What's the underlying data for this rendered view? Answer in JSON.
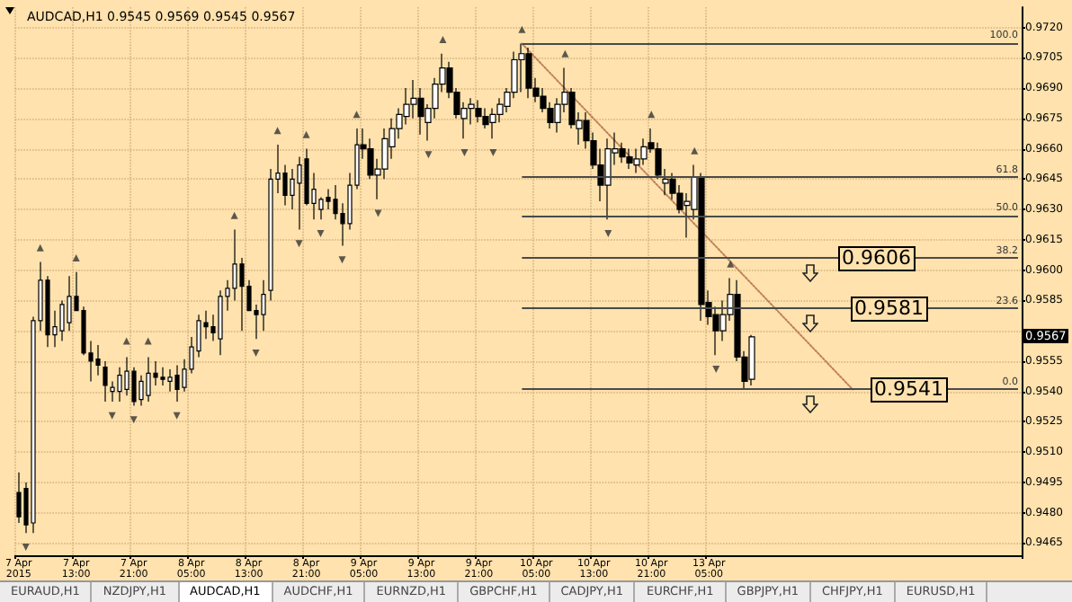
{
  "chart_data": {
    "type": "candlestick",
    "title": "AUDCAD,H1 0.9545 0.9569 0.9545 0.9567",
    "categories": [
      "7 Apr 2015",
      null,
      null,
      null,
      null,
      null,
      null,
      null,
      "7 Apr 13:00",
      null,
      null,
      null,
      null,
      null,
      null,
      null,
      "7 Apr 21:00",
      null,
      null,
      null,
      null,
      null,
      null,
      null,
      "8 Apr 05:00",
      null,
      null,
      null,
      null,
      null,
      null,
      null,
      "8 Apr 13:00",
      null,
      null,
      null,
      null,
      null,
      null,
      null,
      "8 Apr 21:00",
      null,
      null,
      null,
      null,
      null,
      null,
      null,
      "9 Apr 05:00",
      null,
      null,
      null,
      null,
      null,
      null,
      null,
      "9 Apr 13:00",
      null,
      null,
      null,
      null,
      null,
      null,
      null,
      "9 Apr 21:00",
      null,
      null,
      null,
      null,
      null,
      null,
      null,
      "10 Apr 05:00",
      null,
      null,
      null,
      null,
      null,
      null,
      null,
      "10 Apr 13:00",
      null,
      null,
      null,
      null,
      null,
      null,
      null,
      "10 Apr 21:00",
      null,
      null,
      null,
      null,
      null,
      null,
      null,
      "13 Apr 05:00",
      null,
      null,
      null,
      null,
      null,
      null,
      null,
      null,
      null,
      null,
      null,
      null,
      null,
      null,
      null,
      null,
      null,
      null,
      null,
      null,
      null,
      null,
      null,
      null,
      null,
      null,
      null,
      null,
      null,
      null,
      null,
      null,
      null,
      null,
      null,
      null,
      null,
      null,
      null,
      null,
      null,
      null,
      null
    ],
    "ohlc": [
      [
        0.949,
        0.95,
        0.9475,
        0.9478
      ],
      [
        0.9492,
        0.9495,
        0.947,
        0.9474
      ],
      [
        0.9475,
        0.9577,
        0.947,
        0.9575
      ],
      [
        0.9575,
        0.9604,
        0.957,
        0.9595
      ],
      [
        0.9595,
        0.9597,
        0.9562,
        0.9568
      ],
      [
        0.9568,
        0.958,
        0.9562,
        0.9572
      ],
      [
        0.957,
        0.9585,
        0.9565,
        0.9583
      ],
      [
        0.9574,
        0.9597,
        0.957,
        0.9587
      ],
      [
        0.9587,
        0.9599,
        0.958,
        0.958
      ],
      [
        0.958,
        0.9582,
        0.9558,
        0.9559
      ],
      [
        0.9559,
        0.9565,
        0.9545,
        0.9555
      ],
      [
        0.9556,
        0.9563,
        0.9548,
        0.9553
      ],
      [
        0.9552,
        0.9555,
        0.9535,
        0.9543
      ],
      [
        0.954,
        0.9545,
        0.9535,
        0.9542
      ],
      [
        0.954,
        0.9552,
        0.9535,
        0.9548
      ],
      [
        0.9541,
        0.9557,
        0.9538,
        0.955
      ],
      [
        0.955,
        0.9552,
        0.9533,
        0.9535
      ],
      [
        0.9536,
        0.9548,
        0.9533,
        0.9545
      ],
      [
        0.9538,
        0.9557,
        0.9535,
        0.9549
      ],
      [
        0.9549,
        0.9555,
        0.9543,
        0.9547
      ],
      [
        0.9547,
        0.9552,
        0.9543,
        0.9546
      ],
      [
        0.9545,
        0.9551,
        0.954,
        0.9547
      ],
      [
        0.9548,
        0.9553,
        0.9535,
        0.9541
      ],
      [
        0.9542,
        0.9556,
        0.954,
        0.9551
      ],
      [
        0.9551,
        0.9567,
        0.9549,
        0.9562
      ],
      [
        0.956,
        0.9578,
        0.9557,
        0.9575
      ],
      [
        0.9574,
        0.958,
        0.9566,
        0.9572
      ],
      [
        0.9572,
        0.9578,
        0.9565,
        0.9569
      ],
      [
        0.9566,
        0.959,
        0.9558,
        0.9587
      ],
      [
        0.9587,
        0.9595,
        0.958,
        0.9591
      ],
      [
        0.9591,
        0.962,
        0.9585,
        0.9603
      ],
      [
        0.9603,
        0.9606,
        0.957,
        0.9592
      ],
      [
        0.9592,
        0.9595,
        0.958,
        0.958
      ],
      [
        0.958,
        0.9583,
        0.9566,
        0.9578
      ],
      [
        0.9578,
        0.9595,
        0.957,
        0.9588
      ],
      [
        0.959,
        0.965,
        0.9585,
        0.9645
      ],
      [
        0.9645,
        0.9662,
        0.9638,
        0.9648
      ],
      [
        0.9648,
        0.9652,
        0.9632,
        0.9637
      ],
      [
        0.9637,
        0.965,
        0.963,
        0.9645
      ],
      [
        0.9643,
        0.9656,
        0.962,
        0.9652
      ],
      [
        0.9655,
        0.966,
        0.9632,
        0.9633
      ],
      [
        0.9633,
        0.9648,
        0.9625,
        0.964
      ],
      [
        0.963,
        0.9636,
        0.9625,
        0.9635
      ],
      [
        0.9636,
        0.964,
        0.963,
        0.9634
      ],
      [
        0.9635,
        0.9642,
        0.9625,
        0.9628
      ],
      [
        0.9628,
        0.9633,
        0.9612,
        0.9623
      ],
      [
        0.9623,
        0.9648,
        0.962,
        0.9642
      ],
      [
        0.9642,
        0.967,
        0.964,
        0.9662
      ],
      [
        0.9662,
        0.967,
        0.9655,
        0.966
      ],
      [
        0.966,
        0.9665,
        0.9645,
        0.9647
      ],
      [
        0.9647,
        0.9655,
        0.9635,
        0.965
      ],
      [
        0.965,
        0.967,
        0.9645,
        0.9665
      ],
      [
        0.9661,
        0.9675,
        0.9655,
        0.967
      ],
      [
        0.967,
        0.968,
        0.9665,
        0.9677
      ],
      [
        0.9676,
        0.969,
        0.9672,
        0.9682
      ],
      [
        0.9682,
        0.9694,
        0.9675,
        0.9685
      ],
      [
        0.9685,
        0.969,
        0.9667,
        0.9676
      ],
      [
        0.9673,
        0.9682,
        0.9664,
        0.968
      ],
      [
        0.968,
        0.9695,
        0.9675,
        0.9692
      ],
      [
        0.9692,
        0.9707,
        0.9688,
        0.97
      ],
      [
        0.97,
        0.9703,
        0.9685,
        0.9688
      ],
      [
        0.9688,
        0.969,
        0.9675,
        0.9677
      ],
      [
        0.9675,
        0.9683,
        0.9665,
        0.968
      ],
      [
        0.968,
        0.9685,
        0.9672,
        0.9682
      ],
      [
        0.968,
        0.9684,
        0.9673,
        0.9676
      ],
      [
        0.9676,
        0.968,
        0.967,
        0.9672
      ],
      [
        0.9673,
        0.968,
        0.9665,
        0.9677
      ],
      [
        0.9677,
        0.9685,
        0.9673,
        0.9682
      ],
      [
        0.9681,
        0.969,
        0.9678,
        0.9688
      ],
      [
        0.9688,
        0.9708,
        0.9685,
        0.9704
      ],
      [
        0.9704,
        0.9712,
        0.9688,
        0.9707
      ],
      [
        0.9707,
        0.971,
        0.9685,
        0.969
      ],
      [
        0.969,
        0.9695,
        0.9683,
        0.9686
      ],
      [
        0.9686,
        0.969,
        0.9678,
        0.968
      ],
      [
        0.968,
        0.9683,
        0.967,
        0.9673
      ],
      [
        0.9673,
        0.9685,
        0.9668,
        0.9682
      ],
      [
        0.9682,
        0.97,
        0.9678,
        0.9688
      ],
      [
        0.9688,
        0.969,
        0.967,
        0.9672
      ],
      [
        0.967,
        0.9678,
        0.9662,
        0.9674
      ],
      [
        0.9674,
        0.9678,
        0.966,
        0.9664
      ],
      [
        0.9664,
        0.9668,
        0.965,
        0.9652
      ],
      [
        0.9652,
        0.966,
        0.9634,
        0.9642
      ],
      [
        0.9642,
        0.9665,
        0.9625,
        0.966
      ],
      [
        0.9658,
        0.9668,
        0.9652,
        0.966
      ],
      [
        0.966,
        0.9663,
        0.9653,
        0.9656
      ],
      [
        0.9656,
        0.966,
        0.965,
        0.9653
      ],
      [
        0.9652,
        0.966,
        0.9648,
        0.9655
      ],
      [
        0.9655,
        0.9665,
        0.9652,
        0.9661
      ],
      [
        0.9663,
        0.967,
        0.9658,
        0.966
      ],
      [
        0.966,
        0.9663,
        0.9645,
        0.9647
      ],
      [
        0.9643,
        0.965,
        0.9637,
        0.9645
      ],
      [
        0.9645,
        0.9648,
        0.9635,
        0.9638
      ],
      [
        0.9638,
        0.9642,
        0.9628,
        0.963
      ],
      [
        0.9632,
        0.9638,
        0.9616,
        0.9634
      ],
      [
        0.963,
        0.9652,
        0.9625,
        0.9646
      ],
      [
        0.9646,
        0.9648,
        0.9575,
        0.9583
      ],
      [
        0.9584,
        0.959,
        0.9573,
        0.9577
      ],
      [
        0.9578,
        0.9582,
        0.9558,
        0.957
      ],
      [
        0.957,
        0.9585,
        0.9565,
        0.9578
      ],
      [
        0.9578,
        0.9596,
        0.9575,
        0.9588
      ],
      [
        0.9588,
        0.9595,
        0.9555,
        0.9557
      ],
      [
        0.9557,
        0.956,
        0.9541,
        0.9545
      ],
      [
        0.9546,
        0.9568,
        0.9543,
        0.9567
      ],
      null,
      null,
      null,
      null,
      null,
      null,
      null,
      null,
      null,
      null,
      null,
      null,
      null,
      null,
      null,
      null,
      null,
      null,
      null,
      null,
      null,
      null,
      null,
      null,
      null,
      null,
      null,
      null,
      null,
      null,
      null,
      null,
      null,
      null,
      null,
      null,
      null
    ],
    "series": [
      {
        "type": "scatter",
        "color": "#333333",
        "marker": "triangle",
        "values": [
          null,
          null,
          null,
          0.9611,
          null,
          null,
          null,
          null,
          0.9606,
          null,
          null,
          null,
          null,
          null,
          null,
          0.9565,
          null,
          null,
          0.9565,
          null,
          null,
          null,
          null,
          null,
          null,
          null,
          null,
          null,
          null,
          null,
          0.9627,
          null,
          null,
          null,
          null,
          null,
          0.9669,
          null,
          null,
          null,
          0.9667,
          null,
          null,
          null,
          null,
          null,
          null,
          0.9677,
          null,
          null,
          null,
          null,
          null,
          null,
          null,
          null,
          null,
          null,
          null,
          0.9714,
          null,
          null,
          null,
          null,
          null,
          null,
          null,
          null,
          null,
          null,
          0.9719,
          null,
          null,
          null,
          null,
          null,
          0.9707,
          null,
          null,
          null,
          null,
          null,
          null,
          null,
          null,
          null,
          null,
          null,
          0.9677,
          null,
          null,
          null,
          null,
          null,
          0.9659,
          null,
          null,
          null,
          null,
          0.9603,
          null,
          null,
          null,
          null,
          null,
          null,
          null,
          null,
          null,
          null,
          null,
          null,
          null,
          null,
          null,
          null,
          null,
          null,
          null,
          null,
          null,
          null,
          null,
          null,
          null,
          null,
          null,
          null,
          null,
          null,
          null,
          null,
          null,
          null,
          null,
          null,
          null,
          null,
          null,
          null
        ]
      },
      {
        "type": "scatter",
        "color": "#333333",
        "marker": "triangle",
        "values": [
          null,
          0.9463,
          null,
          null,
          null,
          null,
          null,
          null,
          null,
          null,
          null,
          null,
          null,
          0.9528,
          null,
          null,
          0.9526,
          null,
          null,
          null,
          null,
          null,
          0.9528,
          null,
          null,
          null,
          null,
          null,
          null,
          null,
          null,
          null,
          null,
          0.9559,
          null,
          null,
          null,
          null,
          null,
          0.9613,
          null,
          null,
          0.9618,
          null,
          null,
          0.9605,
          null,
          null,
          null,
          null,
          0.9628,
          null,
          null,
          null,
          null,
          null,
          null,
          0.9657,
          null,
          null,
          null,
          null,
          0.9658,
          null,
          null,
          null,
          0.9658,
          null,
          null,
          null,
          null,
          null,
          null,
          null,
          null,
          null,
          null,
          null,
          null,
          null,
          null,
          null,
          0.9618,
          null,
          null,
          null,
          null,
          null,
          null,
          null,
          null,
          null,
          null,
          null,
          null,
          null,
          null,
          0.9551,
          null,
          null,
          null,
          null,
          null,
          null,
          null,
          null,
          null,
          null,
          null,
          null,
          null,
          null,
          null,
          null,
          null,
          null,
          null,
          null,
          null,
          null,
          null,
          null,
          null,
          null,
          null,
          null,
          null,
          null,
          null,
          null,
          null,
          null,
          null,
          null,
          null,
          null,
          null,
          null,
          null,
          null
        ]
      },
      {
        "type": "line",
        "color": "#c0805a",
        "line_style": "dotted",
        "values": [
          null,
          null,
          null,
          null,
          null,
          null,
          null,
          null,
          null,
          null,
          null,
          null,
          null,
          null,
          null,
          null,
          null,
          null,
          null,
          null,
          null,
          null,
          null,
          null,
          null,
          null,
          null,
          null,
          null,
          null,
          null,
          null,
          null,
          null,
          null,
          null,
          null,
          null,
          null,
          null,
          null,
          null,
          null,
          null,
          null,
          null,
          null,
          null,
          null,
          null,
          null,
          null,
          null,
          null,
          null,
          null,
          null,
          null,
          null,
          null,
          null,
          null,
          null,
          null,
          null,
          null,
          null,
          null,
          null,
          null,
          0.9712,
          null,
          null,
          null,
          null,
          null,
          null,
          null,
          null,
          null,
          null,
          null,
          null,
          null,
          null,
          null,
          null,
          null,
          null,
          null,
          null,
          null,
          null,
          null,
          null,
          null,
          null,
          null,
          null,
          null,
          null,
          null,
          null,
          null,
          null,
          null,
          null,
          null,
          null,
          null,
          null,
          null,
          null,
          null,
          null,
          null,
          0.9541,
          null,
          null,
          null,
          null,
          null,
          null,
          null,
          null,
          null,
          null,
          null,
          null,
          null,
          null,
          null,
          null,
          null,
          null,
          null,
          null,
          null,
          null,
          null
        ]
      }
    ],
    "ylim": [
      0.9459,
      0.973
    ],
    "yticks": [
      0.9465,
      {
        "value": 0.948,
        "label": "0.9480"
      },
      0.9495,
      {
        "value": 0.951,
        "label": "0.9510"
      },
      0.9525,
      {
        "value": 0.954,
        "label": "0.9540"
      },
      0.9555,
      {
        "value": 0.957,
        "label": null
      },
      0.9585,
      {
        "value": 0.96,
        "label": "0.9600"
      },
      0.9615,
      {
        "value": 0.963,
        "label": "0.9630"
      },
      0.9645,
      {
        "value": 0.966,
        "label": "0.9660"
      },
      0.9675,
      {
        "value": 0.969,
        "label": "0.9690"
      },
      0.9705,
      {
        "value": 0.972,
        "label": "0.9720"
      }
    ],
    "ref_lines": [
      {
        "axis": "y",
        "value": 0.9712
      },
      {
        "axis": "y",
        "value": 0.9646
      },
      {
        "axis": "y",
        "value": 0.9627
      },
      {
        "axis": "y",
        "value": 0.9606
      },
      {
        "axis": "y",
        "value": 0.9581
      },
      {
        "axis": "y",
        "value": 0.9541
      }
    ],
    "annotations": [
      {
        "text": "100.0",
        "y": 0.9712
      },
      {
        "text": "61.8",
        "y": 0.9646
      },
      {
        "text": "50.0",
        "y": 0.9627
      },
      {
        "text": "38.2",
        "y": 0.9606
      },
      {
        "text": "23.6",
        "y": 0.9581
      },
      {
        "text": "0.0",
        "y": 0.9541
      },
      {
        "text": "0.9606",
        "y": 0.9606
      },
      {
        "text": "0.9581",
        "y": 0.9581
      },
      {
        "text": "0.9541",
        "y": 0.9541
      },
      {
        "text": "0.9567",
        "y": 0.9567
      },
      "EURAUD,H1",
      "NZDJPY,H1",
      "AUDCAD,H1",
      "AUDCHF,H1",
      "EURNZD,H1",
      "GBPCHF,H1",
      "CADJPY,H1",
      "EURCHF,H1",
      "GBPJPY,H1",
      "CHFJPY,H1",
      "EURUSD,H1"
    ],
    "grid": true
  }
}
